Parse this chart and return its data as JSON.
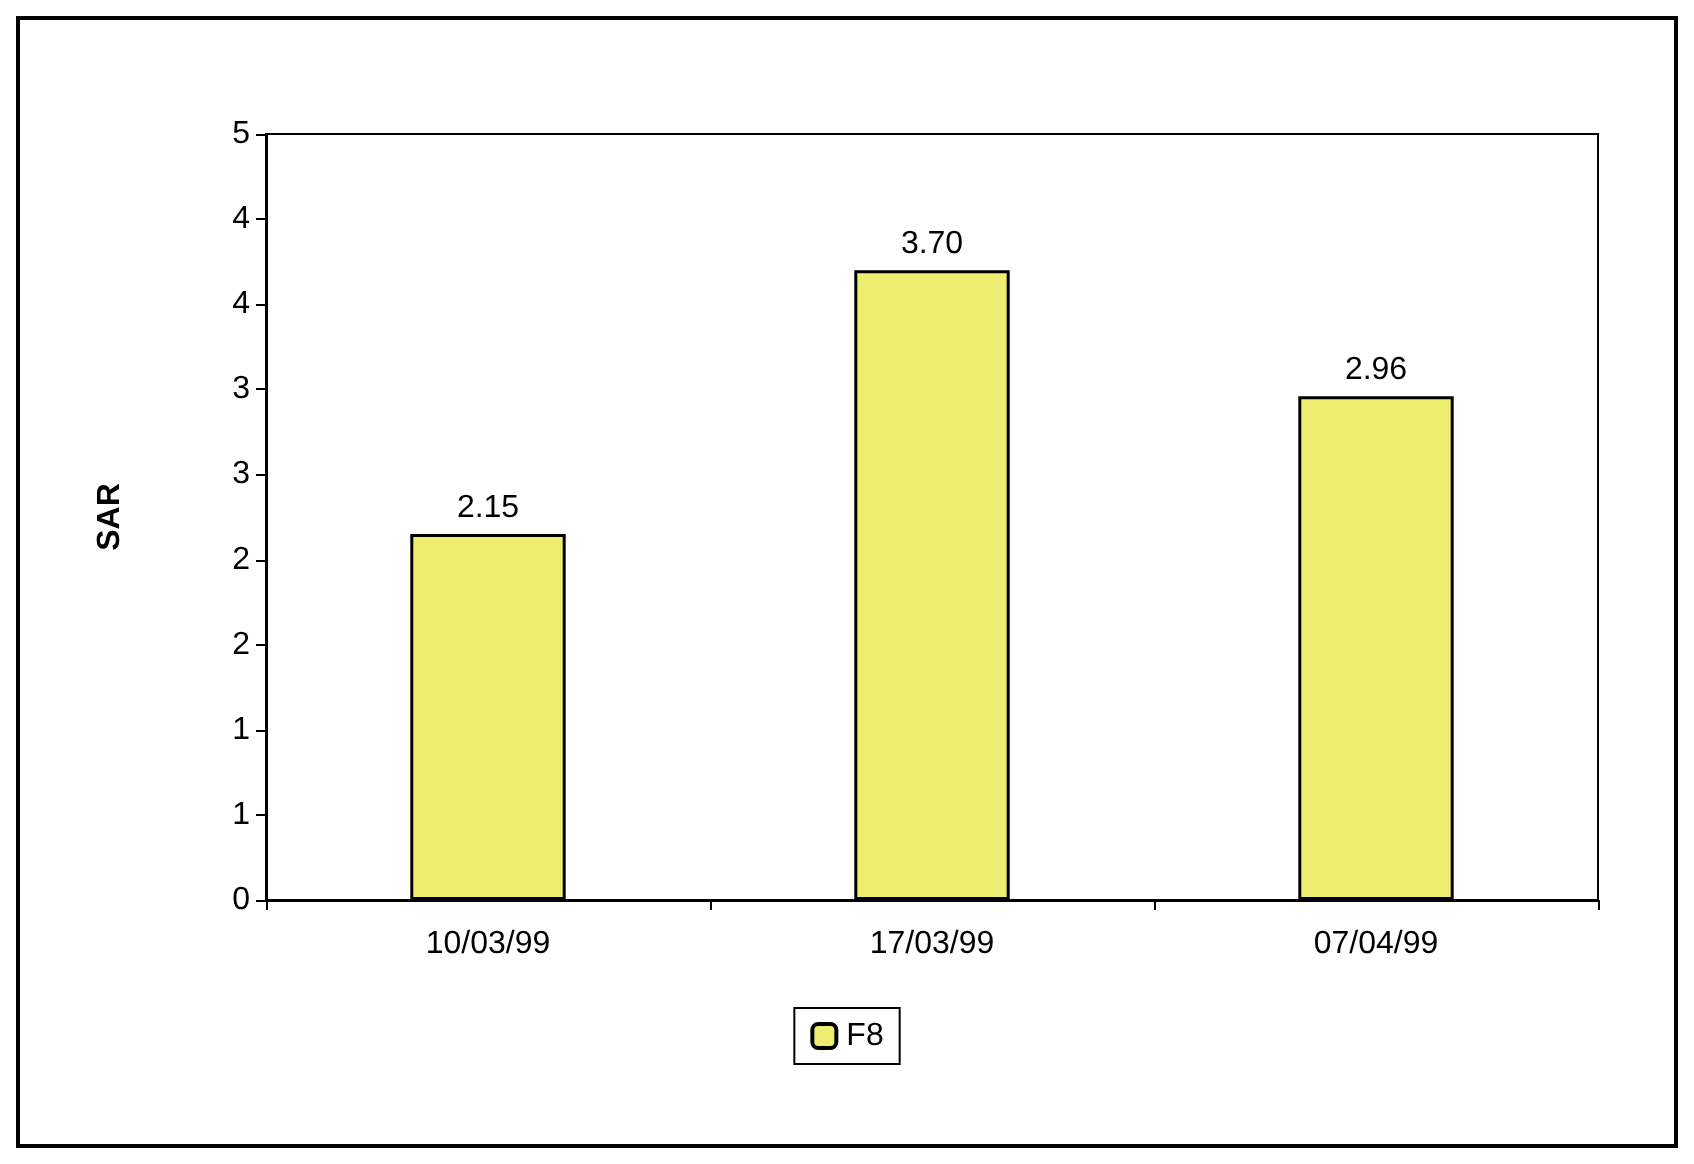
{
  "chart_data": {
    "type": "bar",
    "ylabel": "SAR",
    "categories": [
      "10/03/99",
      "17/03/99",
      "07/04/99"
    ],
    "series": [
      {
        "name": "F8",
        "color": "#eded6f",
        "values": [
          2.15,
          3.7,
          2.96
        ],
        "value_labels": [
          "2.15",
          "3.70",
          "2.96"
        ]
      }
    ],
    "ylim": [
      0,
      4.5
    ],
    "yticks": [
      0,
      {
        "value": 0.5,
        "label": "1"
      },
      1,
      {
        "value": 1.5,
        "label": "2"
      },
      2,
      {
        "value": 2.5,
        "label": "3"
      },
      3,
      {
        "value": 3.5,
        "label": "4"
      },
      4,
      {
        "value": 4.5,
        "label": "5"
      }
    ],
    "grid": false,
    "legend": "bottom"
  }
}
